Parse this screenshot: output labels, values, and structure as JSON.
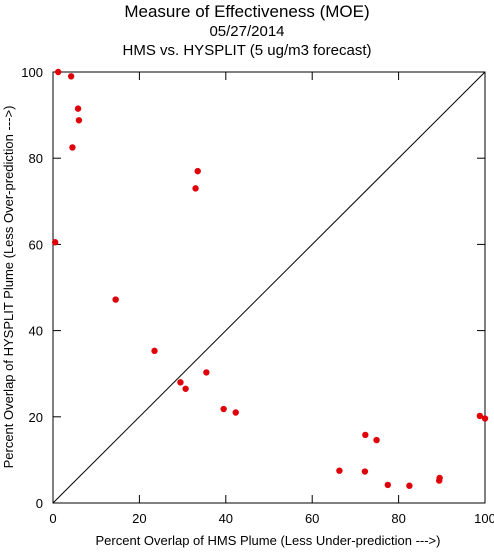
{
  "chart_data": {
    "type": "scatter",
    "title": "Measure of Effectiveness (MOE)",
    "subtitle_date": "05/27/2014",
    "subtitle_desc": "HMS vs. HYSPLIT  (5 ug/m3 forecast)",
    "xlabel": "Percent Overlap of HMS Plume (Less Under-prediction --->)",
    "ylabel": "Percent Overlap of HYSPLIT Plume (Less Over-prediction --->)",
    "xlim": [
      0,
      100
    ],
    "ylim": [
      0,
      100
    ],
    "x_ticks": [
      0,
      20,
      40,
      60,
      80,
      100
    ],
    "y_ticks": [
      0,
      20,
      40,
      60,
      80,
      100
    ],
    "grid": false,
    "reference_line": "diagonal y = x",
    "marker_color": "#e0000a",
    "line_color": "#000000",
    "points": [
      {
        "x": 1.2,
        "y": 100.0
      },
      {
        "x": 4.2,
        "y": 99.0
      },
      {
        "x": 5.8,
        "y": 91.5
      },
      {
        "x": 6.0,
        "y": 88.8
      },
      {
        "x": 4.5,
        "y": 82.5
      },
      {
        "x": 0.5,
        "y": 60.5
      },
      {
        "x": 33.5,
        "y": 77.0
      },
      {
        "x": 33.0,
        "y": 73.0
      },
      {
        "x": 14.5,
        "y": 47.2
      },
      {
        "x": 23.5,
        "y": 35.3
      },
      {
        "x": 35.5,
        "y": 30.3
      },
      {
        "x": 29.5,
        "y": 28.0
      },
      {
        "x": 30.7,
        "y": 26.5
      },
      {
        "x": 39.5,
        "y": 21.8
      },
      {
        "x": 42.3,
        "y": 21.0
      },
      {
        "x": 66.3,
        "y": 7.5
      },
      {
        "x": 72.3,
        "y": 15.8
      },
      {
        "x": 74.9,
        "y": 14.6
      },
      {
        "x": 72.2,
        "y": 7.3
      },
      {
        "x": 77.5,
        "y": 4.2
      },
      {
        "x": 82.5,
        "y": 4.0
      },
      {
        "x": 89.5,
        "y": 5.8
      },
      {
        "x": 89.4,
        "y": 5.2
      },
      {
        "x": 98.8,
        "y": 20.2
      },
      {
        "x": 100.0,
        "y": 19.6
      }
    ]
  }
}
